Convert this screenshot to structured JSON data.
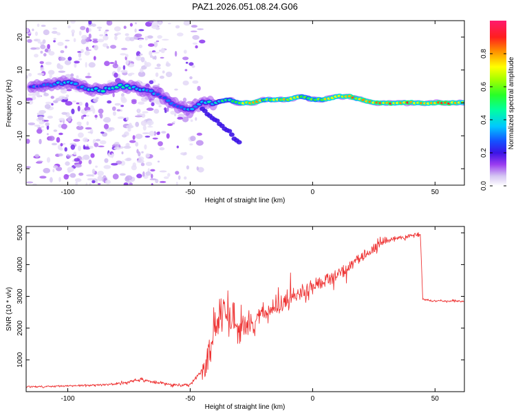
{
  "title": "PAZ1.2026.051.08.24.G06",
  "chart_data": [
    {
      "type": "heatmap",
      "xlabel": "Height of straight line (km)",
      "ylabel": "Frequency (Hz)",
      "xlim": [
        -117,
        62
      ],
      "ylim": [
        -25,
        25
      ],
      "xticks": [
        -100,
        -50,
        0,
        50
      ],
      "yticks": [
        -20,
        -10,
        0,
        10,
        20
      ],
      "ridge": {
        "x": [
          -110,
          -105,
          -100,
          -95,
          -90,
          -85,
          -80,
          -75,
          -70,
          -65,
          -60,
          -55,
          -50,
          -45,
          -40,
          -35,
          -30,
          -25,
          -20,
          -15,
          -10,
          -5,
          0,
          5,
          10,
          15,
          20,
          25,
          30,
          40,
          50,
          62
        ],
        "y": [
          5,
          6,
          6,
          5,
          4,
          4,
          5,
          5,
          4,
          3,
          1,
          -1,
          -2,
          0,
          0,
          1,
          0,
          0,
          1,
          1,
          1,
          2,
          1,
          1,
          2,
          2,
          1,
          0,
          0,
          0,
          0,
          0
        ],
        "peak_amplitude": [
          0.3,
          0.35,
          0.4,
          0.35,
          0.4,
          0.45,
          0.5,
          0.45,
          0.4,
          0.35,
          0.3,
          0.3,
          0.35,
          0.4,
          0.45,
          0.5,
          0.6,
          0.85,
          0.7,
          0.75,
          0.8,
          0.7,
          0.6,
          0.75,
          0.9,
          0.85,
          0.8,
          0.85,
          0.9,
          0.88,
          0.9,
          0.85
        ]
      },
      "branch": {
        "x": [
          -45,
          -40,
          -35,
          -30
        ],
        "y": [
          -2,
          -5,
          -8,
          -12
        ]
      },
      "colorbar": {
        "label": "Normalized spectral amplitude",
        "range": [
          0.0,
          1.0
        ],
        "ticks": [
          "0.0",
          "0.2",
          "0.4",
          "0.6",
          "0.8"
        ]
      }
    },
    {
      "type": "line",
      "xlabel": "Height of straight line (km)",
      "ylabel": "SNR (10 * v/v)",
      "xlim": [
        -117,
        62
      ],
      "ylim": [
        0,
        5200
      ],
      "xticks": [
        -100,
        -50,
        0,
        50
      ],
      "yticks": [
        1000,
        2000,
        3000,
        4000,
        5000
      ],
      "series": [
        {
          "name": "SNR",
          "color": "#ee3333",
          "x": [
            -117,
            -110,
            -100,
            -90,
            -80,
            -75,
            -70,
            -65,
            -60,
            -55,
            -50,
            -48,
            -45,
            -42,
            -40,
            -38,
            -35,
            -32,
            -30,
            -27,
            -25,
            -20,
            -15,
            -10,
            -5,
            0,
            5,
            10,
            15,
            20,
            25,
            30,
            35,
            40,
            44,
            45,
            50,
            55,
            62
          ],
          "y": [
            150,
            160,
            180,
            200,
            250,
            300,
            380,
            300,
            250,
            200,
            220,
            400,
            700,
            1300,
            2000,
            2300,
            2500,
            2300,
            2000,
            2200,
            2100,
            2500,
            2700,
            2900,
            3100,
            3300,
            3500,
            3700,
            3900,
            4200,
            4500,
            4750,
            4850,
            4900,
            4950,
            2900,
            2850,
            2850,
            2850
          ]
        }
      ]
    }
  ]
}
